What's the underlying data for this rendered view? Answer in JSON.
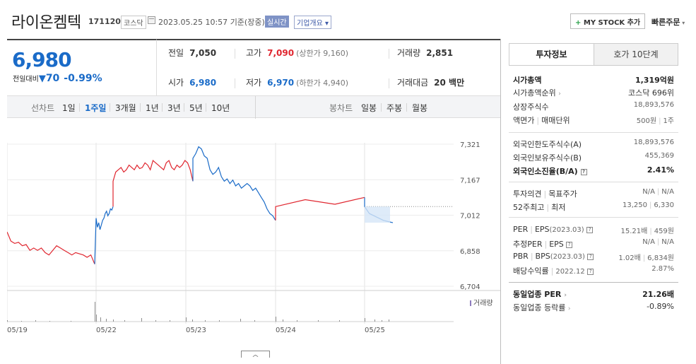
{
  "header": {
    "company": "라이온켐텍",
    "code": "171120",
    "market": "코스닥",
    "datetime": "2023.05.25 10:57",
    "basis": "기준(장중)",
    "live": "실시간",
    "overview": "기업개요",
    "mystock": "MY STOCK 추가",
    "quick_order": "빠른주문"
  },
  "price": {
    "current": "6,980",
    "change_label": "전일대비",
    "change": "70",
    "change_pct": "-0.99%"
  },
  "stats": {
    "prev_label": "전일",
    "prev": "7,050",
    "high_label": "고가",
    "high": "7,090",
    "upper_limit": "(상한가 9,160)",
    "volume_label": "거래량",
    "volume": "2,851",
    "open_label": "시가",
    "open": "6,980",
    "low_label": "저가",
    "low": "6,970",
    "lower_limit": "(하한가 4,940)",
    "amount_label": "거래대금",
    "amount": "20 백만"
  },
  "tabs": {
    "line_label": "선차트",
    "periods": [
      "1일",
      "1주일",
      "3개월",
      "1년",
      "3년",
      "5년",
      "10년"
    ],
    "active": "1주일",
    "candle_label": "봉차트",
    "candles": [
      "일봉",
      "주봉",
      "월봉"
    ]
  },
  "chart_data": {
    "type": "line",
    "y_ticks": [
      "7,321",
      "7,167",
      "7,012",
      "6,858",
      "6,704"
    ],
    "x_ticks": [
      "05/19",
      "05/22",
      "05/23",
      "05/24",
      "05/25"
    ],
    "volume_label": "거래량",
    "prev_close": 7050,
    "series": [
      {
        "color": "#e0262f",
        "values": [
          6940,
          6900,
          6890,
          6895,
          6880,
          6885,
          6860,
          6870,
          6860,
          6870,
          6850,
          6840,
          6860,
          6880,
          6870,
          6860,
          6850,
          6840,
          6850,
          6845,
          6840,
          6830,
          6840,
          6800
        ]
      },
      {
        "color": "#1a6bc8",
        "values": [
          7000,
          6960,
          6980,
          6950,
          6970,
          6990,
          7000,
          7020,
          7030,
          7010,
          7020,
          7040,
          7035,
          7050
        ]
      },
      {
        "color": "#e0262f",
        "values": [
          7160,
          7200,
          7210,
          7220,
          7200,
          7210,
          7230,
          7220,
          7210,
          7230,
          7215,
          7220,
          7240,
          7230,
          7210,
          7250,
          7240,
          7230,
          7220,
          7210,
          7240,
          7250,
          7220,
          7210,
          7230,
          7220,
          7230,
          7250,
          7240,
          7210,
          7160
        ]
      },
      {
        "color": "#1a6bc8",
        "values": [
          7260,
          7280,
          7310,
          7300,
          7270,
          7260,
          7210,
          7190,
          7200,
          7220,
          7180,
          7160,
          7170,
          7150,
          7165,
          7140,
          7150,
          7130,
          7140,
          7150,
          7140,
          7120,
          7130,
          7110,
          7090,
          7070,
          7040,
          7020,
          7010,
          6990
        ]
      },
      {
        "color": "#e0262f",
        "values": [
          7050,
          7080,
          7060,
          7090
        ]
      },
      {
        "color": "#1a6bc8",
        "values": [
          7050,
          7020,
          7010,
          7000,
          6990,
          6985,
          6980
        ]
      }
    ]
  },
  "sidebar": {
    "tab_info": "투자정보",
    "tab_hoga": "호가 10단계",
    "market_cap_label": "시가총액",
    "market_cap": "1,319억원",
    "market_cap_rank_label": "시가총액순위",
    "market_cap_rank": "코스닥 696위",
    "shares_label": "상장주식수",
    "shares": "18,893,576",
    "face_label": "액면가",
    "unit_label": "매매단위",
    "face": "500원",
    "unit": "1주",
    "foreign_limit_label": "외국인한도주식수(A)",
    "foreign_limit": "18,893,576",
    "foreign_hold_label": "외국인보유주식수(B)",
    "foreign_hold": "455,369",
    "foreign_ratio_label": "외국인소진율(B/A)",
    "foreign_ratio": "2.41%",
    "opinion_label": "투자의견",
    "target_label": "목표주가",
    "opinion": "N/A",
    "target": "N/A",
    "week52_high_label": "52주최고",
    "week52_low_label": "최저",
    "week52_high": "13,250",
    "week52_low": "6,330",
    "per_label": "PER",
    "eps_label": "EPS",
    "per_period": "(2023.03)",
    "per": "15.21배",
    "eps": "459원",
    "est_per_label": "추정PER",
    "est_eps_label": "EPS",
    "est_per": "N/A",
    "est_eps": "N/A",
    "pbr_label": "PBR",
    "bps_label": "BPS",
    "pbr_period": "(2023.03)",
    "pbr": "1.02배",
    "bps": "6,834원",
    "div_label": "배당수익률",
    "div_period": "2022.12",
    "div": "2.87%",
    "ind_per_label": "동일업종 PER",
    "ind_per": "21.26배",
    "ind_rate_label": "동일업종 등락률",
    "ind_rate": "-0.89%"
  }
}
